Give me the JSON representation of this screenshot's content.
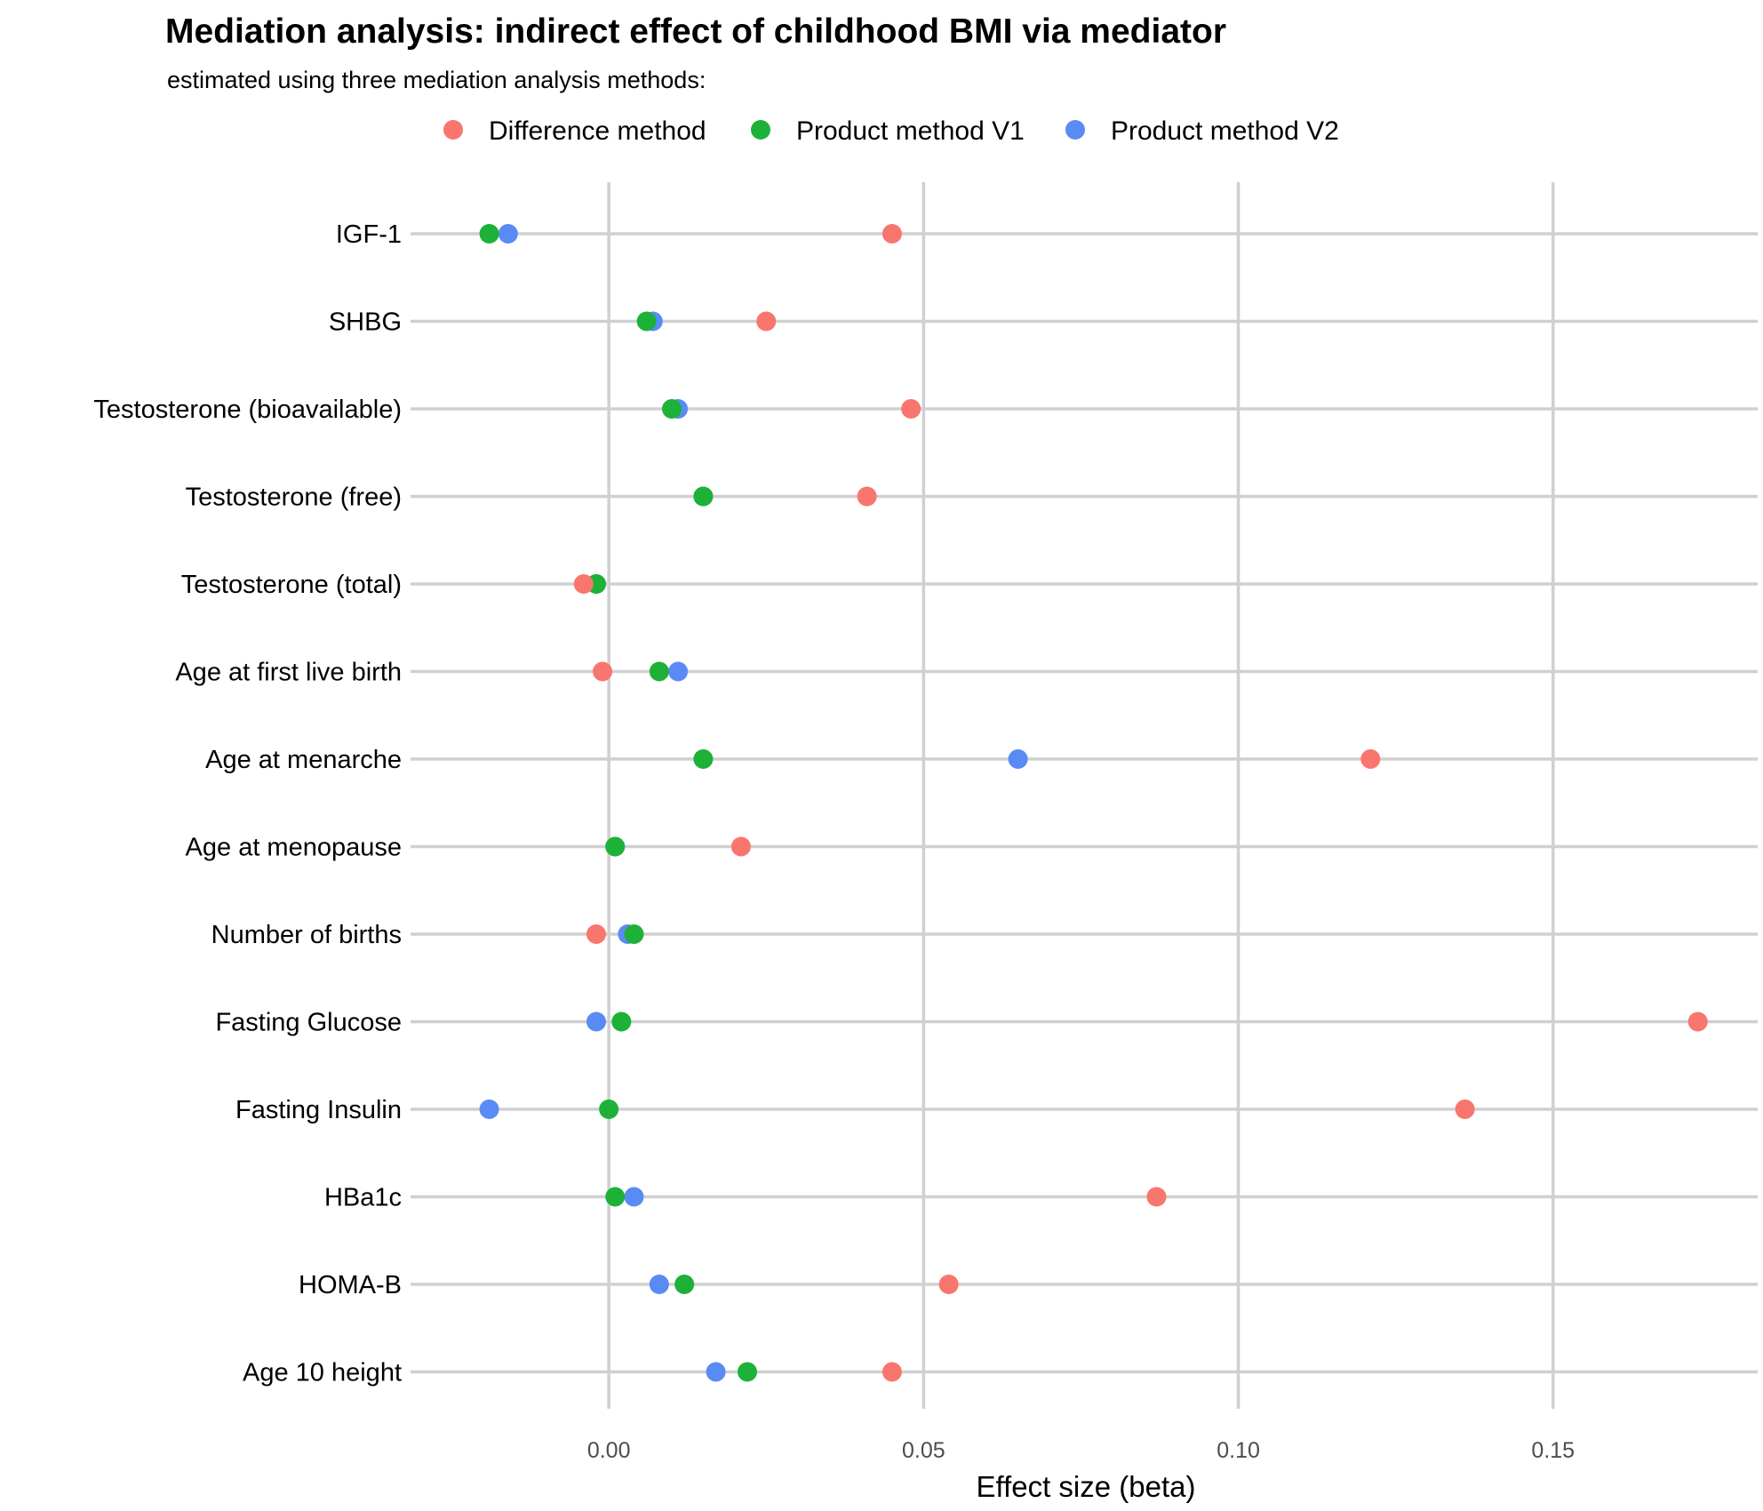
{
  "chart_data": {
    "type": "scatter",
    "title": "Mediation analysis: indirect effect of childhood BMI via mediator",
    "subtitle": "estimated using three mediation analysis methods:",
    "xlabel": "Effect size (beta)",
    "ylabel": "",
    "xlim": [
      -0.0315,
      0.1825
    ],
    "xticks": [
      0.0,
      0.05,
      0.1,
      0.15
    ],
    "xtick_labels": [
      "0.00",
      "0.05",
      "0.10",
      "0.15"
    ],
    "categories": [
      "IGF-1",
      "SHBG",
      "Testosterone (bioavailable)",
      "Testosterone (free)",
      "Testosterone (total)",
      "Age at first live birth",
      "Age at menarche",
      "Age at menopause",
      "Number of births",
      "Fasting Glucose",
      "Fasting Insulin",
      "HBa1c",
      "HOMA-B",
      "Age 10 height"
    ],
    "grid": true,
    "legend_position": "top",
    "series": [
      {
        "name": "Difference method",
        "color": "#F8766D",
        "values": [
          0.045,
          0.025,
          0.048,
          0.041,
          -0.004,
          -0.001,
          0.121,
          0.021,
          -0.002,
          0.173,
          0.136,
          0.087,
          0.054,
          0.045
        ]
      },
      {
        "name": "Product method V1",
        "color": "#1DB138",
        "values": [
          -0.019,
          0.006,
          0.01,
          0.015,
          -0.002,
          0.008,
          0.015,
          0.001,
          0.004,
          0.002,
          0.0,
          0.001,
          0.012,
          0.022
        ]
      },
      {
        "name": "Product method V2",
        "color": "#5A8BF5",
        "values": [
          -0.016,
          0.007,
          0.011,
          0.015,
          -0.002,
          0.011,
          0.065,
          0.001,
          0.003,
          -0.002,
          -0.019,
          0.004,
          0.008,
          0.017
        ]
      }
    ]
  }
}
